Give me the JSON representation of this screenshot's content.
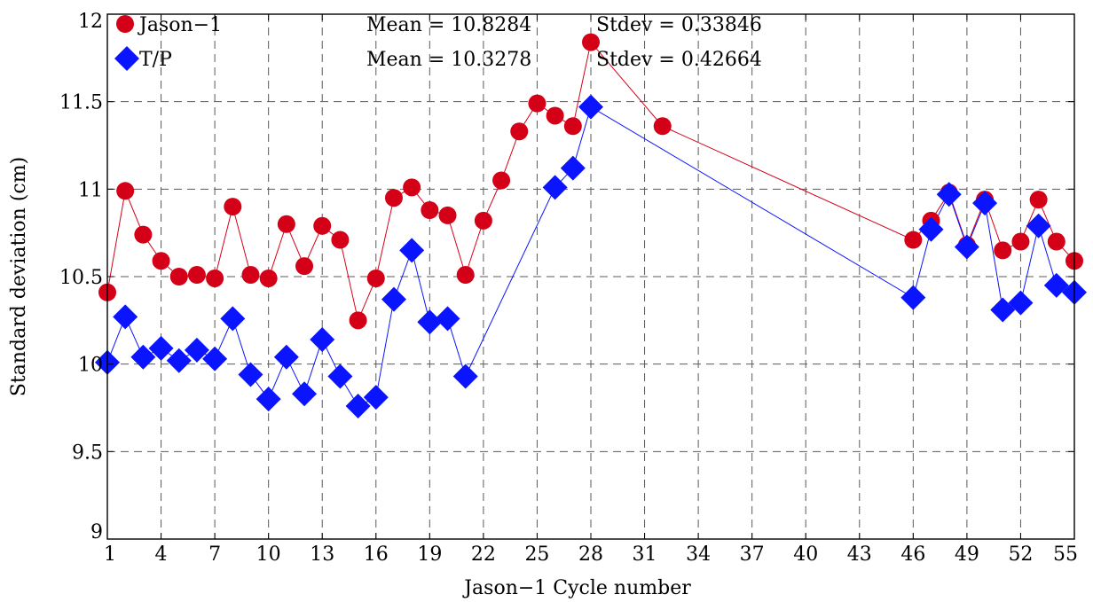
{
  "chart_data": {
    "type": "line",
    "xlabel": "Jason−1 Cycle number",
    "ylabel": "Standard deviation (cm)",
    "xlim": [
      1,
      55
    ],
    "ylim": [
      9,
      12
    ],
    "xticks": [
      1,
      4,
      7,
      10,
      13,
      16,
      19,
      22,
      25,
      28,
      31,
      34,
      37,
      40,
      43,
      46,
      49,
      52,
      55
    ],
    "yticks": [
      9,
      9.5,
      10,
      10.5,
      11,
      11.5,
      12
    ],
    "ytick_labels": [
      "9",
      "9.5",
      "10",
      "10.5",
      "11",
      "11.5",
      "12"
    ],
    "grid": true,
    "legend_position": "top-left",
    "series": [
      {
        "name": "Jason−1",
        "color": "#d40018",
        "marker": "circle",
        "mean_label": "Mean = 10.8284",
        "stdev_label": "Stdev = 0.33846",
        "points": [
          [
            1,
            10.41
          ],
          [
            2,
            10.99
          ],
          [
            3,
            10.74
          ],
          [
            4,
            10.59
          ],
          [
            5,
            10.5
          ],
          [
            6,
            10.51
          ],
          [
            7,
            10.49
          ],
          [
            8,
            10.9
          ],
          [
            9,
            10.51
          ],
          [
            10,
            10.49
          ],
          [
            11,
            10.8
          ],
          [
            12,
            10.56
          ],
          [
            13,
            10.79
          ],
          [
            14,
            10.71
          ],
          [
            15,
            10.25
          ],
          [
            16,
            10.49
          ],
          [
            17,
            10.95
          ],
          [
            18,
            11.01
          ],
          [
            19,
            10.88
          ],
          [
            20,
            10.85
          ],
          [
            21,
            10.51
          ],
          [
            22,
            10.82
          ],
          [
            23,
            11.05
          ],
          [
            24,
            11.33
          ],
          [
            25,
            11.49
          ],
          [
            26,
            11.42
          ],
          [
            27,
            11.36
          ],
          [
            28,
            11.84
          ],
          [
            32,
            11.36
          ],
          [
            46,
            10.71
          ],
          [
            47,
            10.82
          ],
          [
            48,
            10.98
          ],
          [
            49,
            10.68
          ],
          [
            50,
            10.94
          ],
          [
            51,
            10.65
          ],
          [
            52,
            10.7
          ],
          [
            53,
            10.94
          ],
          [
            54,
            10.7
          ],
          [
            55,
            10.59
          ]
        ]
      },
      {
        "name": "T/P",
        "color": "#0a14ff",
        "marker": "diamond",
        "mean_label": "Mean = 10.3278",
        "stdev_label": "Stdev = 0.42664",
        "points": [
          [
            1,
            10.01
          ],
          [
            2,
            10.27
          ],
          [
            3,
            10.04
          ],
          [
            4,
            10.09
          ],
          [
            5,
            10.02
          ],
          [
            6,
            10.08
          ],
          [
            7,
            10.03
          ],
          [
            8,
            10.26
          ],
          [
            9,
            9.94
          ],
          [
            10,
            9.8
          ],
          [
            11,
            10.04
          ],
          [
            12,
            9.83
          ],
          [
            13,
            10.14
          ],
          [
            14,
            9.93
          ],
          [
            15,
            9.76
          ],
          [
            16,
            9.81
          ],
          [
            17,
            10.37
          ],
          [
            18,
            10.65
          ],
          [
            19,
            10.24
          ],
          [
            20,
            10.26
          ],
          [
            21,
            9.93
          ],
          [
            26,
            11.01
          ],
          [
            27,
            11.12
          ],
          [
            28,
            11.47
          ],
          [
            46,
            10.38
          ],
          [
            47,
            10.77
          ],
          [
            48,
            10.97
          ],
          [
            49,
            10.67
          ],
          [
            50,
            10.92
          ],
          [
            51,
            10.31
          ],
          [
            52,
            10.35
          ],
          [
            53,
            10.79
          ],
          [
            54,
            10.45
          ],
          [
            55,
            10.41
          ]
        ]
      }
    ]
  }
}
